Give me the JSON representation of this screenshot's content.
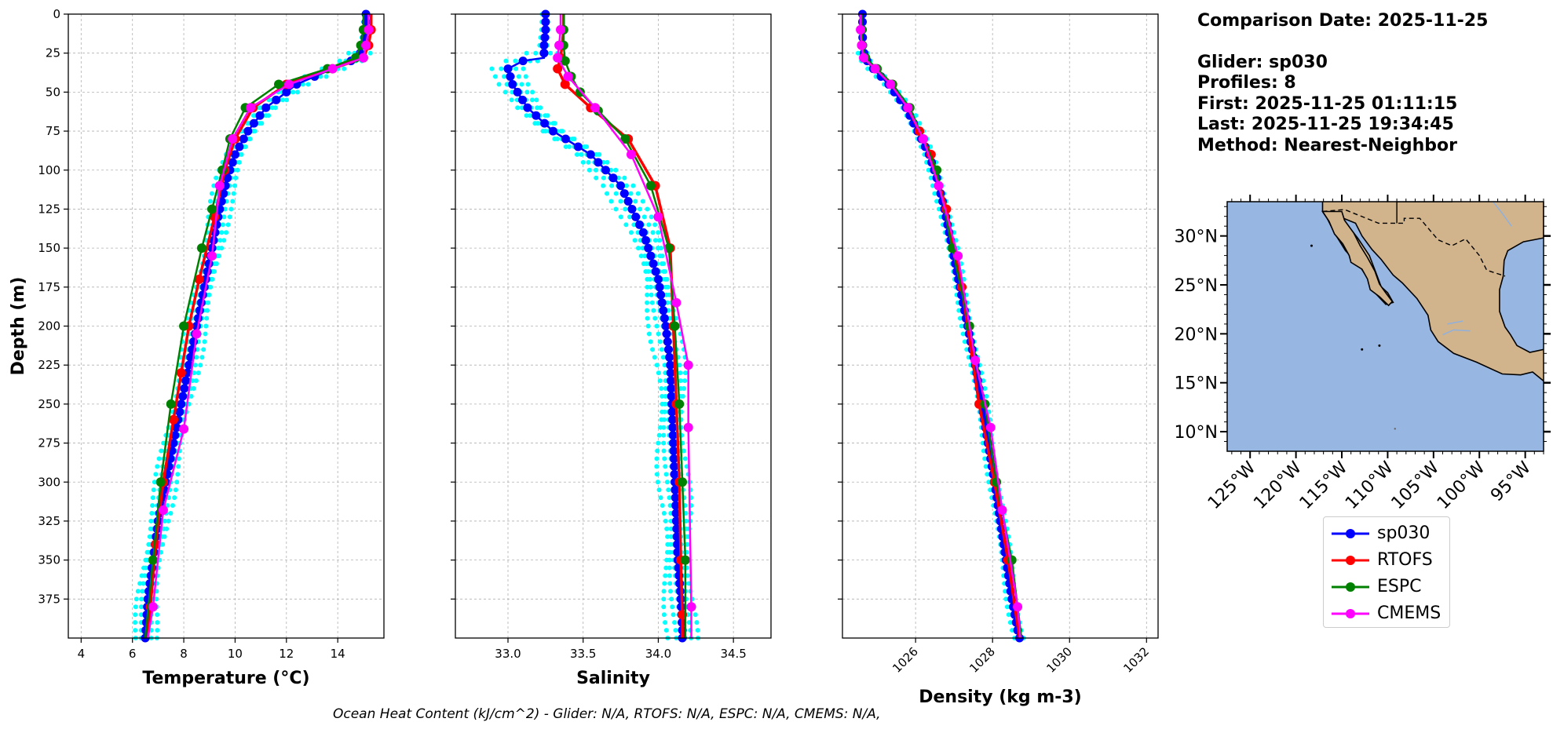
{
  "colors": {
    "glider": "#0000ff",
    "glider_profiles": "#00ffff",
    "rtofs": "#ff0000",
    "espc": "#008000",
    "cmems": "#ff00ff",
    "ocean": "#97b6e1",
    "land": "#d2b48c",
    "grid": "#b0b0b0"
  },
  "info": {
    "comparison_date": "Comparison Date: 2025-11-25",
    "glider": "Glider: sp030",
    "profiles": "Profiles: 8",
    "first": "First: 2025-11-25 01:11:15",
    "last": "Last: 2025-11-25 19:34:45",
    "method": "Method: Nearest-Neighbor"
  },
  "legend": [
    "sp030",
    "RTOFS",
    "ESPC",
    "CMEMS"
  ],
  "footer": "Ocean Heat Content (kJ/cm^2) - Glider: N/A,  RTOFS: N/A,  ESPC: N/A,  CMEMS: N/A,",
  "chart_data": [
    {
      "type": "line",
      "xlabel": "Temperature (°C)",
      "ylabel": "Depth (m)",
      "xlim": [
        3.5,
        15.8
      ],
      "ylim": [
        400,
        0
      ],
      "xticks": [
        4,
        6,
        8,
        10,
        12,
        14
      ],
      "yticks": [
        0,
        25,
        50,
        75,
        100,
        125,
        150,
        175,
        200,
        225,
        250,
        275,
        300,
        325,
        350,
        375
      ],
      "grid": true,
      "series": [
        {
          "name": "sp030",
          "x": [
            15.1,
            15.1,
            15.0,
            14.8,
            13.8,
            12.4,
            11.2,
            10.5,
            10.0,
            9.7,
            9.4,
            9.1,
            8.8,
            8.5,
            8.2,
            7.9,
            7.6,
            7.3,
            7.0,
            6.8,
            6.6,
            6.5
          ],
          "y": [
            0,
            10,
            20,
            28,
            35,
            45,
            60,
            75,
            90,
            105,
            125,
            150,
            175,
            200,
            225,
            250,
            275,
            300,
            325,
            350,
            375,
            400
          ]
        },
        {
          "name": "RTOFS",
          "x": [
            15.3,
            15.3,
            15.2,
            15.0,
            13.8,
            12.0,
            10.7,
            10.0,
            9.6,
            9.2,
            8.6,
            8.2,
            7.9,
            7.6,
            7.2,
            6.9,
            6.7,
            6.6
          ],
          "y": [
            0,
            10,
            20,
            28,
            35,
            45,
            60,
            80,
            100,
            130,
            170,
            200,
            230,
            260,
            300,
            340,
            380,
            400
          ]
        },
        {
          "name": "ESPC",
          "x": [
            15.0,
            15.0,
            14.9,
            14.7,
            13.6,
            11.7,
            10.4,
            9.8,
            9.5,
            9.1,
            8.7,
            8.0,
            7.5,
            7.1,
            6.8,
            6.5
          ],
          "y": [
            0,
            10,
            20,
            28,
            35,
            45,
            60,
            80,
            100,
            125,
            150,
            200,
            250,
            300,
            350,
            400
          ]
        },
        {
          "name": "CMEMS",
          "x": [
            15.2,
            15.2,
            15.1,
            15.0,
            13.8,
            12.1,
            10.6,
            9.9,
            9.4,
            9.1,
            8.5,
            8.0,
            7.2,
            6.8,
            6.6
          ],
          "y": [
            0,
            10,
            20,
            28,
            35,
            45,
            60,
            80,
            110,
            155,
            205,
            266,
            318,
            380,
            400
          ]
        }
      ]
    },
    {
      "type": "line",
      "xlabel": "Salinity",
      "ylabel": "",
      "xlim": [
        32.65,
        34.75
      ],
      "ylim": [
        400,
        0
      ],
      "xticks": [
        33.0,
        33.5,
        34.0,
        34.5
      ],
      "grid": true,
      "series": [
        {
          "name": "sp030",
          "x": [
            33.25,
            33.25,
            33.24,
            33.24,
            33.1,
            33.0,
            33.03,
            33.13,
            33.3,
            33.55,
            33.75,
            33.9,
            34.0,
            34.05,
            34.08,
            34.09,
            34.1,
            34.11,
            34.12,
            34.13,
            34.15,
            34.16,
            34.16
          ],
          "y": [
            0,
            10,
            20,
            28,
            30,
            35,
            45,
            60,
            75,
            90,
            110,
            140,
            170,
            200,
            225,
            250,
            275,
            300,
            325,
            350,
            375,
            395,
            400
          ]
        },
        {
          "name": "RTOFS",
          "x": [
            33.37,
            33.37,
            33.36,
            33.35,
            33.33,
            33.38,
            33.55,
            33.8,
            33.98,
            34.08,
            34.1,
            34.12,
            34.14,
            34.15,
            34.16,
            34.16
          ],
          "y": [
            0,
            10,
            20,
            28,
            35,
            45,
            60,
            80,
            110,
            150,
            200,
            250,
            300,
            350,
            385,
            400
          ]
        },
        {
          "name": "ESPC",
          "x": [
            33.37,
            33.37,
            33.37,
            33.38,
            33.42,
            33.48,
            33.6,
            33.78,
            33.95,
            34.07,
            34.11,
            34.14,
            34.16,
            34.18,
            34.18
          ],
          "y": [
            0,
            10,
            20,
            30,
            40,
            50,
            62,
            80,
            110,
            150,
            200,
            250,
            300,
            350,
            400
          ]
        },
        {
          "name": "CMEMS",
          "x": [
            33.35,
            33.35,
            33.34,
            33.33,
            33.4,
            33.58,
            33.82,
            34.0,
            34.12,
            34.2,
            34.2,
            34.22,
            34.22
          ],
          "y": [
            0,
            10,
            20,
            28,
            40,
            60,
            90,
            130,
            185,
            225,
            265,
            380,
            400
          ]
        }
      ]
    },
    {
      "type": "line",
      "xlabel": "Density (kg m-3)",
      "ylabel": "",
      "xlim": [
        1024.1,
        1032.3
      ],
      "ylim": [
        400,
        0
      ],
      "xticks": [
        1026,
        1028,
        1030,
        1032
      ],
      "grid": true,
      "series": [
        {
          "name": "sp030",
          "x": [
            1024.62,
            1024.62,
            1024.63,
            1024.68,
            1024.9,
            1025.3,
            1025.75,
            1026.05,
            1026.35,
            1026.55,
            1026.75,
            1026.95,
            1027.15,
            1027.35,
            1027.55,
            1027.72,
            1027.88,
            1028.05,
            1028.2,
            1028.35,
            1028.5,
            1028.65,
            1028.7
          ],
          "y": [
            0,
            10,
            20,
            28,
            35,
            45,
            60,
            75,
            90,
            105,
            125,
            150,
            175,
            200,
            225,
            250,
            275,
            300,
            325,
            350,
            375,
            395,
            400
          ]
        },
        {
          "name": "RTOFS",
          "x": [
            1024.58,
            1024.58,
            1024.6,
            1024.66,
            1024.95,
            1025.4,
            1025.8,
            1026.1,
            1026.4,
            1026.8,
            1027.2,
            1027.65,
            1028.05,
            1028.4,
            1028.7
          ],
          "y": [
            0,
            10,
            20,
            28,
            35,
            45,
            60,
            75,
            90,
            125,
            175,
            250,
            300,
            350,
            400
          ]
        },
        {
          "name": "ESPC",
          "x": [
            1024.6,
            1024.6,
            1024.62,
            1024.7,
            1025.0,
            1025.4,
            1025.85,
            1026.2,
            1026.55,
            1026.95,
            1027.4,
            1027.8,
            1028.1,
            1028.5,
            1028.75
          ],
          "y": [
            0,
            10,
            20,
            28,
            35,
            45,
            60,
            80,
            100,
            150,
            200,
            250,
            300,
            350,
            400
          ]
        },
        {
          "name": "CMEMS",
          "x": [
            1024.57,
            1024.57,
            1024.6,
            1024.65,
            1024.95,
            1025.35,
            1025.8,
            1026.2,
            1026.6,
            1027.1,
            1027.55,
            1027.95,
            1028.25,
            1028.65,
            1028.72
          ],
          "y": [
            0,
            10,
            20,
            28,
            35,
            45,
            60,
            80,
            110,
            155,
            222,
            265,
            318,
            380,
            400
          ]
        }
      ]
    },
    {
      "type": "map",
      "xticks": [
        "125°W",
        "120°W",
        "115°W",
        "110°W",
        "105°W",
        "100°W",
        "95°W"
      ],
      "yticks": [
        "30°N",
        "25°N",
        "20°N",
        "15°N",
        "10°N"
      ],
      "lon_range": [
        -127.5,
        -93.0
      ],
      "lat_range": [
        8.0,
        33.5
      ]
    }
  ]
}
